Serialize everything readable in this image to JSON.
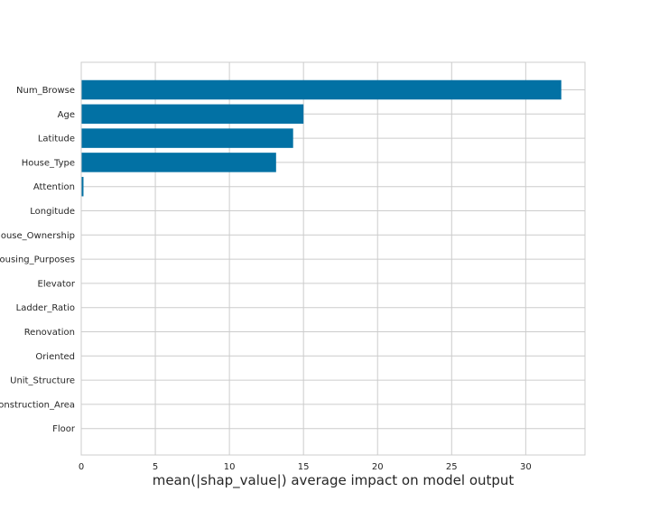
{
  "chart_data": {
    "type": "bar",
    "orientation": "horizontal",
    "title": "",
    "xlabel": "mean(|shap_value|) average impact on model output",
    "ylabel": "",
    "xlim": [
      0,
      34
    ],
    "xticks": [
      0,
      5,
      10,
      15,
      20,
      25,
      30
    ],
    "grid": true,
    "bar_color": "#0271a4",
    "grid_color": "#cccccc",
    "categories": [
      "Num_Browse",
      "Age",
      "Latitude",
      "House_Type",
      "Attention",
      "Longitude",
      "House_Ownership",
      "Housing_Purposes",
      "Elevator",
      "Ladder_Ratio",
      "Renovation",
      "Oriented",
      "Unit_Structure",
      "Construction_Area",
      "Floor"
    ],
    "values": [
      32.4,
      15.0,
      14.3,
      13.15,
      0.15,
      0,
      0,
      0,
      0,
      0,
      0,
      0,
      0,
      0,
      0
    ]
  }
}
